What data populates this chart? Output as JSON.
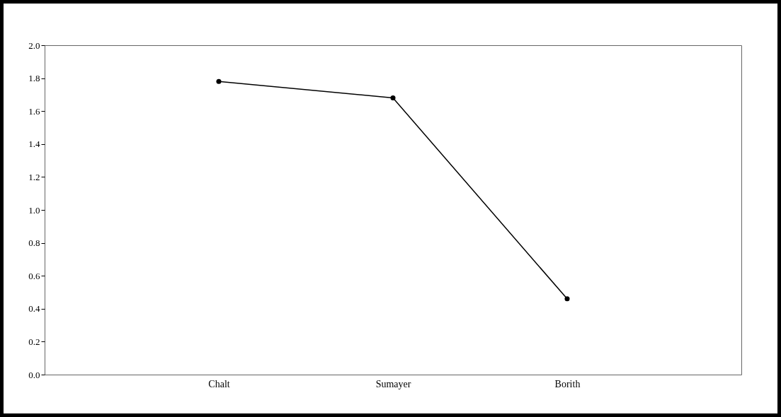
{
  "chart_data": {
    "type": "line",
    "categories": [
      "Chalt",
      "Sumayer",
      "Borith"
    ],
    "values": [
      1.78,
      1.68,
      0.46
    ],
    "color": "#000000",
    "ylim": [
      0,
      2
    ],
    "yticks": [
      {
        "value": 0,
        "label": "0.0"
      },
      0.2,
      0.4,
      0.6,
      0.8,
      {
        "value": 1,
        "label": "1.0"
      },
      1.2,
      1.4,
      1.6,
      1.8,
      {
        "value": 2,
        "label": "2.0"
      }
    ],
    "marker": "circle"
  }
}
